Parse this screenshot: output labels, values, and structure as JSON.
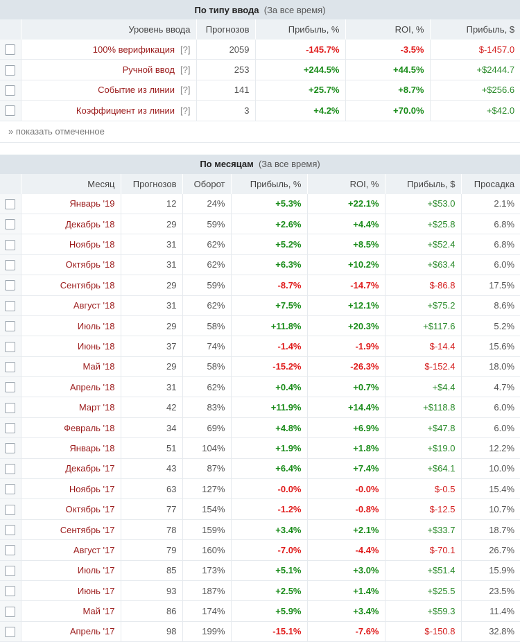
{
  "by_type": {
    "title": "По типу ввода",
    "subtitle": "(За все время)",
    "headers": {
      "level": "Уровень ввода",
      "count": "Прогнозов",
      "profit_pct": "Прибыль, %",
      "roi": "ROI, %",
      "profit_usd": "Прибыль, $"
    },
    "rows": [
      {
        "name": "100% верификация",
        "help": "[?]",
        "count": "2059",
        "profit_pct": "-145.7%",
        "roi": "-3.5%",
        "profit_usd": "$-1457.0"
      },
      {
        "name": "Ручной ввод",
        "help": "[?]",
        "count": "253",
        "profit_pct": "+244.5%",
        "roi": "+44.5%",
        "profit_usd": "+$2444.7"
      },
      {
        "name": "Событие из линии",
        "help": "[?]",
        "count": "141",
        "profit_pct": "+25.7%",
        "roi": "+8.7%",
        "profit_usd": "+$256.6"
      },
      {
        "name": "Коэффициент из линии",
        "help": "[?]",
        "count": "3",
        "profit_pct": "+4.2%",
        "roi": "+70.0%",
        "profit_usd": "+$42.0"
      }
    ],
    "show_marked": "» показать отмеченное"
  },
  "by_month": {
    "title": "По месяцам",
    "subtitle": "(За все время)",
    "headers": {
      "month": "Месяц",
      "count": "Прогнозов",
      "turnover": "Оборот",
      "profit_pct": "Прибыль, %",
      "roi": "ROI, %",
      "profit_usd": "Прибыль, $",
      "drawdown": "Просадка"
    },
    "rows": [
      {
        "month": "Январь '19",
        "count": "12",
        "turnover": "24%",
        "profit_pct": "+5.3%",
        "roi": "+22.1%",
        "profit_usd": "+$53.0",
        "drawdown": "2.1%"
      },
      {
        "month": "Декабрь '18",
        "count": "29",
        "turnover": "59%",
        "profit_pct": "+2.6%",
        "roi": "+4.4%",
        "profit_usd": "+$25.8",
        "drawdown": "6.8%"
      },
      {
        "month": "Ноябрь '18",
        "count": "31",
        "turnover": "62%",
        "profit_pct": "+5.2%",
        "roi": "+8.5%",
        "profit_usd": "+$52.4",
        "drawdown": "6.8%"
      },
      {
        "month": "Октябрь '18",
        "count": "31",
        "turnover": "62%",
        "profit_pct": "+6.3%",
        "roi": "+10.2%",
        "profit_usd": "+$63.4",
        "drawdown": "6.0%"
      },
      {
        "month": "Сентябрь '18",
        "count": "29",
        "turnover": "59%",
        "profit_pct": "-8.7%",
        "roi": "-14.7%",
        "profit_usd": "$-86.8",
        "drawdown": "17.5%"
      },
      {
        "month": "Август '18",
        "count": "31",
        "turnover": "62%",
        "profit_pct": "+7.5%",
        "roi": "+12.1%",
        "profit_usd": "+$75.2",
        "drawdown": "8.6%"
      },
      {
        "month": "Июль '18",
        "count": "29",
        "turnover": "58%",
        "profit_pct": "+11.8%",
        "roi": "+20.3%",
        "profit_usd": "+$117.6",
        "drawdown": "5.2%"
      },
      {
        "month": "Июнь '18",
        "count": "37",
        "turnover": "74%",
        "profit_pct": "-1.4%",
        "roi": "-1.9%",
        "profit_usd": "$-14.4",
        "drawdown": "15.6%"
      },
      {
        "month": "Май '18",
        "count": "29",
        "turnover": "58%",
        "profit_pct": "-15.2%",
        "roi": "-26.3%",
        "profit_usd": "$-152.4",
        "drawdown": "18.0%"
      },
      {
        "month": "Апрель '18",
        "count": "31",
        "turnover": "62%",
        "profit_pct": "+0.4%",
        "roi": "+0.7%",
        "profit_usd": "+$4.4",
        "drawdown": "4.7%"
      },
      {
        "month": "Март '18",
        "count": "42",
        "turnover": "83%",
        "profit_pct": "+11.9%",
        "roi": "+14.4%",
        "profit_usd": "+$118.8",
        "drawdown": "6.0%"
      },
      {
        "month": "Февраль '18",
        "count": "34",
        "turnover": "69%",
        "profit_pct": "+4.8%",
        "roi": "+6.9%",
        "profit_usd": "+$47.8",
        "drawdown": "6.0%"
      },
      {
        "month": "Январь '18",
        "count": "51",
        "turnover": "104%",
        "profit_pct": "+1.9%",
        "roi": "+1.8%",
        "profit_usd": "+$19.0",
        "drawdown": "12.2%"
      },
      {
        "month": "Декабрь '17",
        "count": "43",
        "turnover": "87%",
        "profit_pct": "+6.4%",
        "roi": "+7.4%",
        "profit_usd": "+$64.1",
        "drawdown": "10.0%"
      },
      {
        "month": "Ноябрь '17",
        "count": "63",
        "turnover": "127%",
        "profit_pct": "-0.0%",
        "roi": "-0.0%",
        "profit_usd": "$-0.5",
        "drawdown": "15.4%"
      },
      {
        "month": "Октябрь '17",
        "count": "77",
        "turnover": "154%",
        "profit_pct": "-1.2%",
        "roi": "-0.8%",
        "profit_usd": "$-12.5",
        "drawdown": "10.7%"
      },
      {
        "month": "Сентябрь '17",
        "count": "78",
        "turnover": "159%",
        "profit_pct": "+3.4%",
        "roi": "+2.1%",
        "profit_usd": "+$33.7",
        "drawdown": "18.7%"
      },
      {
        "month": "Август '17",
        "count": "79",
        "turnover": "160%",
        "profit_pct": "-7.0%",
        "roi": "-4.4%",
        "profit_usd": "$-70.1",
        "drawdown": "26.7%"
      },
      {
        "month": "Июль '17",
        "count": "85",
        "turnover": "173%",
        "profit_pct": "+5.1%",
        "roi": "+3.0%",
        "profit_usd": "+$51.4",
        "drawdown": "15.9%"
      },
      {
        "month": "Июнь '17",
        "count": "93",
        "turnover": "187%",
        "profit_pct": "+2.5%",
        "roi": "+1.4%",
        "profit_usd": "+$25.5",
        "drawdown": "23.5%"
      },
      {
        "month": "Май '17",
        "count": "86",
        "turnover": "174%",
        "profit_pct": "+5.9%",
        "roi": "+3.4%",
        "profit_usd": "+$59.3",
        "drawdown": "11.4%"
      },
      {
        "month": "Апрель '17",
        "count": "98",
        "turnover": "199%",
        "profit_pct": "-15.1%",
        "roi": "-7.6%",
        "profit_usd": "$-150.8",
        "drawdown": "32.8%"
      }
    ]
  },
  "colors": {
    "positive": "#1a8c1a",
    "negative": "#e01b1b",
    "name": "#9b1b1b",
    "header_bg": "#dde4ea",
    "subheader_bg": "#edf1f4"
  }
}
